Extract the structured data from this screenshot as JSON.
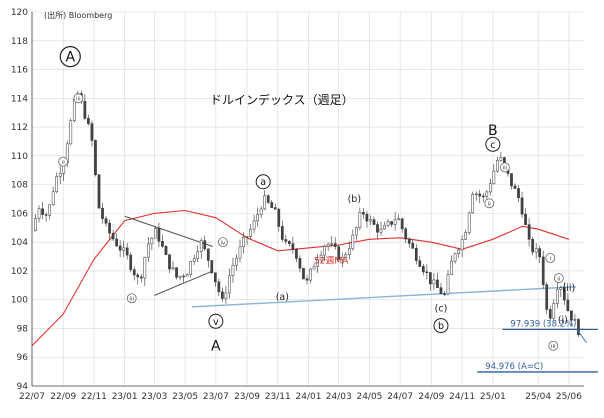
{
  "chart_data": {
    "type": "candlestick",
    "source_note": "(出所) Bloomberg",
    "title": "ドルインデックス（週足）",
    "ylim": [
      94,
      120
    ],
    "yticks": [
      94,
      96,
      98,
      100,
      102,
      104,
      106,
      108,
      110,
      112,
      114,
      116,
      118,
      120
    ],
    "x_start": "2022-07-01",
    "x_end": "2025-07-01",
    "xtick_labels": [
      "22/07",
      "22/09",
      "22/11",
      "23/01",
      "23/03",
      "23/05",
      "23/07",
      "23/09",
      "23/11",
      "24/01",
      "24/03",
      "24/05",
      "24/07",
      "24/09",
      "24/11",
      "25/01",
      "25/04",
      "25/06"
    ],
    "xtick_dates": [
      "2022-07-01",
      "2022-09-01",
      "2022-11-01",
      "2023-01-01",
      "2023-03-01",
      "2023-05-01",
      "2023-07-01",
      "2023-09-01",
      "2023-11-01",
      "2024-01-01",
      "2024-03-01",
      "2024-05-01",
      "2024-07-01",
      "2024-09-01",
      "2024-11-01",
      "2025-01-01",
      "2025-04-01",
      "2025-06-01"
    ],
    "price_path": [
      [
        "2022-07-01",
        104.8
      ],
      [
        "2022-07-15",
        106.5
      ],
      [
        "2022-08-01",
        105.8
      ],
      [
        "2022-08-15",
        108.2
      ],
      [
        "2022-09-01",
        109.6
      ],
      [
        "2022-09-28",
        114.5
      ],
      [
        "2022-10-15",
        112.8
      ],
      [
        "2022-10-28",
        111.0
      ],
      [
        "2022-11-10",
        106.5
      ],
      [
        "2022-11-25",
        105.0
      ],
      [
        "2022-12-10",
        104.2
      ],
      [
        "2023-01-05",
        103.0
      ],
      [
        "2023-01-30",
        101.2
      ],
      [
        "2023-02-15",
        103.8
      ],
      [
        "2023-03-05",
        104.8
      ],
      [
        "2023-03-25",
        102.8
      ],
      [
        "2023-04-15",
        101.5
      ],
      [
        "2023-05-05",
        102.0
      ],
      [
        "2023-05-31",
        104.1
      ],
      [
        "2023-06-20",
        102.5
      ],
      [
        "2023-07-14",
        99.8
      ],
      [
        "2023-08-01",
        102.2
      ],
      [
        "2023-08-25",
        104.0
      ],
      [
        "2023-09-15",
        105.3
      ],
      [
        "2023-10-03",
        107.0
      ],
      [
        "2023-10-25",
        106.2
      ],
      [
        "2023-11-15",
        103.8
      ],
      [
        "2023-12-05",
        103.5
      ],
      [
        "2023-12-27",
        101.0
      ],
      [
        "2024-01-15",
        102.8
      ],
      [
        "2024-02-05",
        104.0
      ],
      [
        "2024-02-20",
        103.5
      ],
      [
        "2024-03-08",
        102.8
      ],
      [
        "2024-04-01",
        104.5
      ],
      [
        "2024-04-16",
        106.2
      ],
      [
        "2024-05-05",
        105.3
      ],
      [
        "2024-05-25",
        104.7
      ],
      [
        "2024-06-25",
        105.8
      ],
      [
        "2024-07-15",
        104.1
      ],
      [
        "2024-08-10",
        102.6
      ],
      [
        "2024-09-01",
        101.2
      ],
      [
        "2024-09-27",
        100.3
      ],
      [
        "2024-10-15",
        103.2
      ],
      [
        "2024-11-05",
        104.4
      ],
      [
        "2024-11-22",
        107.6
      ],
      [
        "2024-12-15",
        107.0
      ],
      [
        "2025-01-13",
        110.0
      ],
      [
        "2025-02-05",
        108.2
      ],
      [
        "2025-02-25",
        106.8
      ],
      [
        "2025-03-15",
        103.7
      ],
      [
        "2025-04-05",
        103.0
      ],
      [
        "2025-04-21",
        98.4
      ],
      [
        "2025-05-12",
        101.5
      ],
      [
        "2025-05-30",
        99.3
      ],
      [
        "2025-06-20",
        97.9
      ]
    ],
    "ma52_path": [
      [
        "2022-07-01",
        96.8
      ],
      [
        "2022-09-01",
        99.0
      ],
      [
        "2022-11-01",
        102.8
      ],
      [
        "2023-01-01",
        105.5
      ],
      [
        "2023-03-01",
        106.0
      ],
      [
        "2023-05-01",
        106.2
      ],
      [
        "2023-07-01",
        105.7
      ],
      [
        "2023-09-01",
        104.3
      ],
      [
        "2023-11-01",
        103.4
      ],
      [
        "2024-01-01",
        103.6
      ],
      [
        "2024-03-01",
        103.8
      ],
      [
        "2024-05-01",
        104.2
      ],
      [
        "2024-07-01",
        104.3
      ],
      [
        "2024-09-01",
        104.0
      ],
      [
        "2024-11-01",
        103.5
      ],
      [
        "2025-01-01",
        104.2
      ],
      [
        "2025-03-01",
        105.1
      ],
      [
        "2025-04-01",
        104.9
      ],
      [
        "2025-06-01",
        104.2
      ]
    ],
    "series": [
      {
        "name": "52週MA",
        "color": "#e03030"
      }
    ],
    "candle_colors": {
      "up": "#ffffff",
      "down": "#444444",
      "edge": "#333333"
    },
    "trendlines": [
      {
        "role": "support",
        "color": "#8eb2d6",
        "points": [
          [
            "2023-05-15",
            99.5
          ],
          [
            "2025-06-15",
            100.9
          ]
        ]
      },
      {
        "role": "triangle-upper",
        "color": "#555555",
        "points": [
          [
            "2023-01-01",
            105.8
          ],
          [
            "2023-06-25",
            103.7
          ]
        ]
      },
      {
        "role": "triangle-lower",
        "color": "#555555",
        "points": [
          [
            "2023-03-01",
            100.3
          ],
          [
            "2023-06-25",
            102.0
          ]
        ]
      }
    ],
    "hlines": [
      {
        "value": 97.939,
        "label": "97.939 (38.2%)",
        "color": "#2f5f9f",
        "label_color": "#2f5f9f",
        "from": "2025-01-20",
        "to": "2025-07-01"
      },
      {
        "value": 94.976,
        "label": "94.976 (A=C)",
        "color": "#2f5f9f",
        "label_color": "#2f5f9f",
        "from": "2024-12-01",
        "to": "2025-07-01"
      }
    ],
    "annotations": [
      {
        "text": "A",
        "date": "2022-09-15",
        "value": 116.9,
        "style": "circle-large"
      },
      {
        "text": "a",
        "date": "2023-10-03",
        "value": 108.2,
        "style": "circle"
      },
      {
        "text": "(b)",
        "date": "2024-04-01",
        "value": 107.0,
        "style": "plain"
      },
      {
        "text": "B",
        "date": "2025-01-01",
        "value": 111.8,
        "style": "bold"
      },
      {
        "text": "c",
        "date": "2025-01-01",
        "value": 110.8,
        "style": "circle"
      },
      {
        "text": "(a)",
        "date": "2023-11-10",
        "value": 100.2,
        "style": "plain"
      },
      {
        "text": "(c)",
        "date": "2024-09-20",
        "value": 99.4,
        "style": "plain"
      },
      {
        "text": "b",
        "date": "2024-09-20",
        "value": 98.2,
        "style": "circle"
      },
      {
        "text": "v",
        "date": "2023-07-01",
        "value": 98.5,
        "style": "circle"
      },
      {
        "text": "A",
        "date": "2023-07-01",
        "value": 96.8,
        "style": "bold"
      },
      {
        "text": "iii",
        "date": "2022-10-01",
        "value": 114.0,
        "style": "circle-small"
      },
      {
        "text": "ii",
        "date": "2022-09-01",
        "value": 109.6,
        "style": "circle-small"
      },
      {
        "text": "iii",
        "date": "2023-01-15",
        "value": 100.1,
        "style": "circle-small"
      },
      {
        "text": "iv",
        "date": "2023-07-15",
        "value": 104.0,
        "style": "circle-small"
      },
      {
        "text": "iii",
        "date": "2025-01-25",
        "value": 109.2,
        "style": "circle-small"
      },
      {
        "text": "ii",
        "date": "2024-12-25",
        "value": 106.7,
        "style": "circle-small"
      },
      {
        "text": "i",
        "date": "2025-04-25",
        "value": 102.9,
        "style": "circle-small"
      },
      {
        "text": "ii",
        "date": "2025-05-12",
        "value": 101.5,
        "style": "circle-small"
      },
      {
        "text": "iii",
        "date": "2025-05-01",
        "value": 96.8,
        "style": "circle-small"
      },
      {
        "text": "(ii)",
        "date": "2025-06-01",
        "value": 100.8,
        "style": "plain"
      },
      {
        "text": "(i)",
        "date": "2025-05-20",
        "value": 98.6,
        "style": "plain"
      },
      {
        "text": "52週MA",
        "date": "2024-02-15",
        "value": 102.5,
        "style": "series-label"
      }
    ]
  }
}
